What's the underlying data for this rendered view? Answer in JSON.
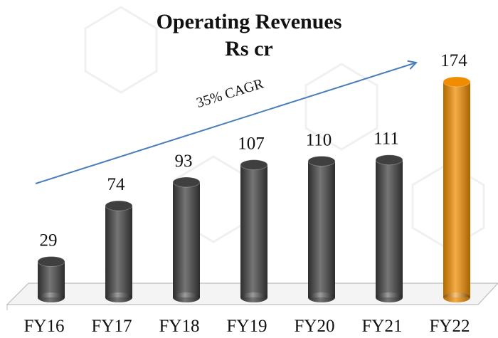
{
  "chart_data": {
    "type": "bar3d",
    "title": "Operating Revenues",
    "subtitle": "Rs cr",
    "annotation": "35% CAGR",
    "categories": [
      "FY16",
      "FY17",
      "FY18",
      "FY19",
      "FY20",
      "FY21",
      "FY22"
    ],
    "values": [
      29,
      74,
      93,
      107,
      110,
      111,
      174
    ],
    "colors": [
      "#3f3f3f",
      "#3f3f3f",
      "#3f3f3f",
      "#3f3f3f",
      "#3f3f3f",
      "#3f3f3f",
      "#f08c00"
    ],
    "arrow_color": "#4a7ebb"
  }
}
